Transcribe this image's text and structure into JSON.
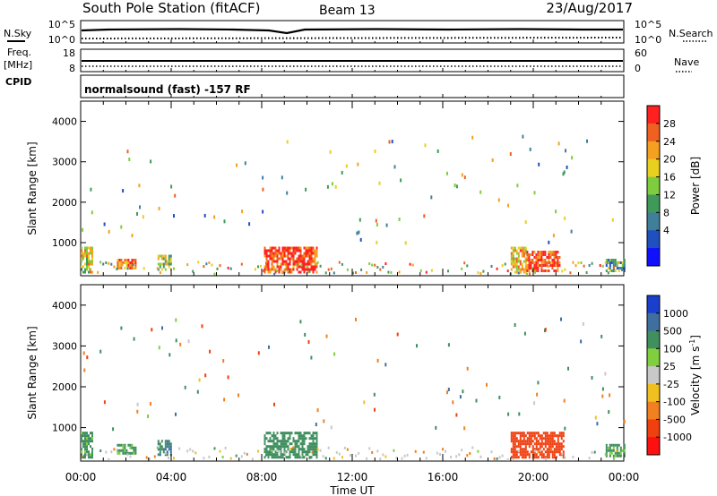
{
  "header": {
    "station": "South Pole Station (fitACF)",
    "beam": "Beam 13",
    "date": "23/Aug/2017"
  },
  "strip": {
    "left_top_label": "N.Sky",
    "left_top_ticks": [
      "10^5",
      "10^0"
    ],
    "freq_label": "Freq.",
    "freq_unit": "[MHz]",
    "freq_ticks": [
      "18",
      "8"
    ],
    "cpid_label": "CPID",
    "right_top_label": "N.Search",
    "right_top_ticks": [
      "10^5",
      "10^0"
    ],
    "nave_label": "Nave",
    "nave_ticks": [
      "60",
      "0"
    ],
    "cpid_text": "normalsound (fast) -157 RF"
  },
  "colorbars": {
    "power": {
      "label": "Power [dB]",
      "ticks": [
        "28",
        "24",
        "20",
        "16",
        "12",
        "8",
        "4"
      ],
      "colors": [
        "#1010ff",
        "#2050c0",
        "#3f7f9a",
        "#3f9a5a",
        "#7fcc3f",
        "#e8d020",
        "#f5a020",
        "#f06020",
        "#ff2020"
      ]
    },
    "velocity": {
      "label": "Velocity [m s",
      "label_sup": "-1",
      "label_end": "]",
      "ticks": [
        "1000",
        "500",
        "100",
        "25",
        "-25",
        "-100",
        "-500",
        "-1000"
      ],
      "colors": [
        "#1a3fcc",
        "#3f6f9f",
        "#3f8f5f",
        "#7fcf3f",
        "#c8c8c8",
        "#f0c020",
        "#f08020",
        "#f04010",
        "#ff1010"
      ]
    }
  },
  "chart_data": [
    {
      "type": "heatmap",
      "title": "Power",
      "xlabel": "Time UT",
      "ylabel": "Slant Range [km]",
      "x_ticks": [
        "00:00",
        "04:00",
        "08:00",
        "12:00",
        "16:00",
        "20:00",
        "00:00"
      ],
      "xlim_hours": [
        0,
        24
      ],
      "y_ticks": [
        1000,
        2000,
        3000,
        4000
      ],
      "ylim": [
        180,
        4500
      ],
      "colorbar_range_db": [
        0,
        30
      ],
      "echo_regions": [
        {
          "t_start": 0.0,
          "t_end": 0.5,
          "range_min": 300,
          "range_max": 900,
          "value": 18
        },
        {
          "t_start": 1.6,
          "t_end": 2.4,
          "range_min": 350,
          "range_max": 600,
          "value": 24
        },
        {
          "t_start": 3.4,
          "t_end": 4.0,
          "range_min": 350,
          "range_max": 700,
          "value": 16
        },
        {
          "t_start": 8.1,
          "t_end": 10.4,
          "range_min": 300,
          "range_max": 900,
          "value": 27
        },
        {
          "t_start": 19.0,
          "t_end": 19.7,
          "range_min": 300,
          "range_max": 900,
          "value": 20
        },
        {
          "t_start": 19.7,
          "t_end": 21.2,
          "range_min": 300,
          "range_max": 800,
          "value": 27
        },
        {
          "t_start": 23.2,
          "t_end": 24.0,
          "range_min": 300,
          "range_max": 600,
          "value": 12
        }
      ]
    },
    {
      "type": "heatmap",
      "title": "Velocity",
      "xlabel": "Time UT",
      "ylabel": "Slant Range [km]",
      "x_ticks": [
        "00:00",
        "04:00",
        "08:00",
        "12:00",
        "16:00",
        "20:00",
        "00:00"
      ],
      "xlim_hours": [
        0,
        24
      ],
      "y_ticks": [
        1000,
        2000,
        3000,
        4000
      ],
      "ylim": [
        180,
        4500
      ],
      "colorbar_range_ms": [
        -1000,
        1000
      ],
      "echo_regions": [
        {
          "t_start": 0.0,
          "t_end": 0.5,
          "range_min": 300,
          "range_max": 900,
          "value": 100
        },
        {
          "t_start": 1.6,
          "t_end": 2.4,
          "range_min": 350,
          "range_max": 600,
          "value": 100
        },
        {
          "t_start": 3.4,
          "t_end": 4.0,
          "range_min": 350,
          "range_max": 700,
          "value": 300
        },
        {
          "t_start": 8.1,
          "t_end": 10.4,
          "range_min": 300,
          "range_max": 900,
          "value": 200
        },
        {
          "t_start": 19.0,
          "t_end": 21.3,
          "range_min": 300,
          "range_max": 900,
          "value": -500
        },
        {
          "t_start": 23.2,
          "t_end": 24.0,
          "range_min": 300,
          "range_max": 600,
          "value": 100
        }
      ]
    }
  ]
}
